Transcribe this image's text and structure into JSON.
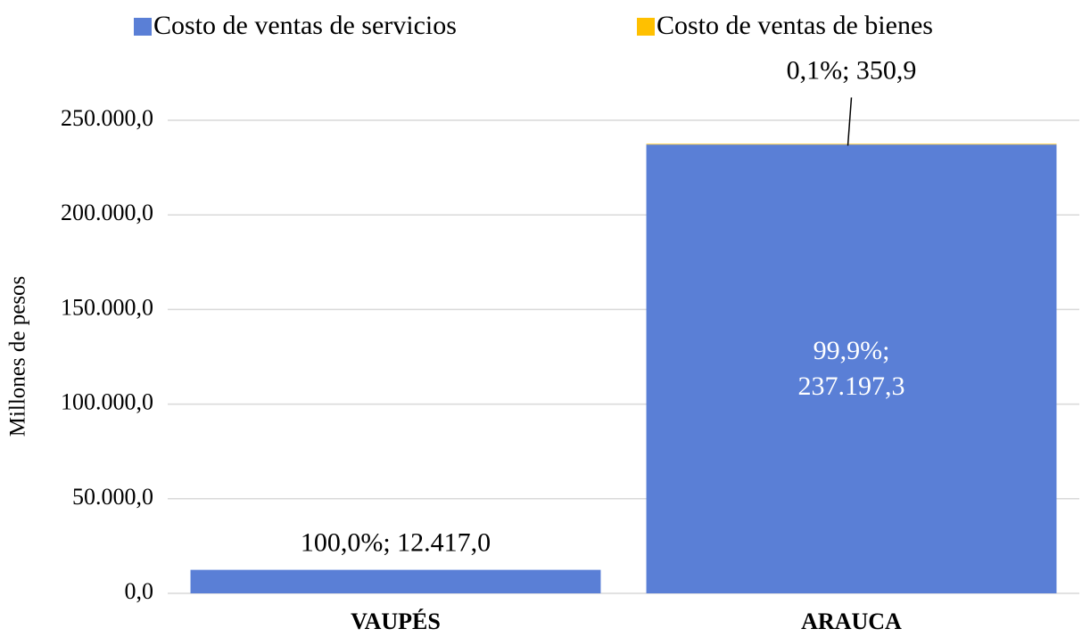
{
  "chart_data": {
    "type": "stacked_bar",
    "y_label": "Millones  de pesos",
    "categories": [
      "VAUPÉS",
      "ARAUCA"
    ],
    "series": [
      {
        "name": "Costo de ventas de servicios",
        "color": "#5a7fd6",
        "values": [
          12417.0,
          237197.3
        ],
        "value_labels": [
          "100,0%; 12.417,0",
          "99,9%; 237.197,3"
        ]
      },
      {
        "name": "Costo de ventas de bienes",
        "color": "#ffc000",
        "values": [
          null,
          350.9
        ],
        "value_labels": [
          null,
          "0,1%; 350,9"
        ]
      }
    ],
    "ylim": [
      0,
      250000
    ],
    "yticks": [
      {
        "value": 0,
        "label": "0,0"
      },
      {
        "value": 50000,
        "label": "50.000,0"
      },
      {
        "value": 100000,
        "label": "100.000,0"
      },
      {
        "value": 150000,
        "label": "150.000,0"
      },
      {
        "value": 200000,
        "label": "200.000,0"
      },
      {
        "value": 250000,
        "label": "250.000,0"
      }
    ],
    "grid": true
  }
}
